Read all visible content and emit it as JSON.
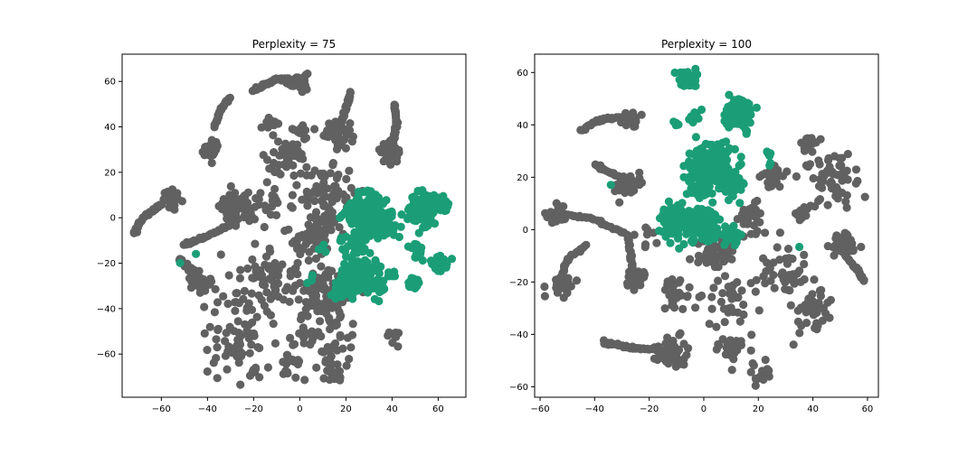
{
  "chart_data": [
    {
      "type": "scatter",
      "title": "Perplexity = 75",
      "xlabel": "",
      "ylabel": "",
      "xlim": [
        -77,
        72
      ],
      "ylim": [
        -79,
        72
      ],
      "xticks": [
        -60,
        -40,
        -20,
        0,
        20,
        40,
        60
      ],
      "yticks": [
        -60,
        -40,
        -20,
        0,
        20,
        40,
        60
      ],
      "xtick_labels": [
        "−60",
        "−40",
        "−20",
        "0",
        "20",
        "40",
        "60"
      ],
      "ytick_labels": [
        "−60",
        "−40",
        "−20",
        "0",
        "20",
        "40",
        "60"
      ],
      "grid": false,
      "series": [
        {
          "color": "#616161",
          "blobs": [
            {
              "cx": -1,
              "cy": 60,
              "r": 4,
              "n": 40
            },
            {
              "cx": 16,
              "cy": 38,
              "r": 5,
              "n": 60
            },
            {
              "cx": -39,
              "cy": 30,
              "r": 3.5,
              "n": 35
            },
            {
              "cx": 39,
              "cy": 29,
              "r": 4,
              "n": 35
            },
            {
              "cx": -55,
              "cy": 8,
              "r": 3.5,
              "n": 35
            },
            {
              "cx": -28,
              "cy": 4,
              "r": 6,
              "n": 80
            },
            {
              "cx": -44,
              "cy": -27,
              "r": 4.5,
              "n": 45
            },
            {
              "cx": 12,
              "cy": 12,
              "r": 10,
              "n": 55
            },
            {
              "cx": -5,
              "cy": 25,
              "r": 10,
              "n": 45
            },
            {
              "cx": -15,
              "cy": 5,
              "r": 8,
              "n": 25
            },
            {
              "cx": 5,
              "cy": -8,
              "r": 10,
              "n": 55
            },
            {
              "cx": -15,
              "cy": -25,
              "r": 12,
              "n": 60
            },
            {
              "cx": 10,
              "cy": -32,
              "r": 12,
              "n": 100
            },
            {
              "cx": -25,
              "cy": -45,
              "r": 14,
              "n": 40
            },
            {
              "cx": 10,
              "cy": -55,
              "r": 15,
              "n": 60
            },
            {
              "cx": -30,
              "cy": -62,
              "r": 12,
              "n": 30
            },
            {
              "cx": 15,
              "cy": -68,
              "r": 4,
              "n": 14
            },
            {
              "cx": -5,
              "cy": -65,
              "r": 5,
              "n": 15
            },
            {
              "cx": 40,
              "cy": -52,
              "r": 4,
              "n": 8
            },
            {
              "cx": -20,
              "cy": -68,
              "r": 2,
              "n": 6
            },
            {
              "cx": 12,
              "cy": -2,
              "r": 5,
              "n": 20
            },
            {
              "cx": -12,
              "cy": 40,
              "r": 3,
              "n": 8
            },
            {
              "cx": 0,
              "cy": 38,
              "r": 3,
              "n": 10
            }
          ],
          "curves": [
            {
              "points": [
                [
                  -20,
                  56
                ],
                [
                  -10,
                  61
                ],
                [
                  -5,
                  61
                ]
              ],
              "n": 60
            },
            {
              "points": [
                [
                  -37,
                  40
                ],
                [
                  -34,
                  48
                ],
                [
                  -30,
                  53
                ]
              ],
              "n": 25
            },
            {
              "points": [
                [
                  -72,
                  -7
                ],
                [
                  -68,
                  0
                ],
                [
                  -60,
                  6
                ]
              ],
              "n": 30
            },
            {
              "points": [
                [
                  -52,
                  -18
                ],
                [
                  -50,
                  -21
                ],
                [
                  -44,
                  -25
                ]
              ],
              "n": 22
            },
            {
              "points": [
                [
                  -50,
                  -12
                ],
                [
                  -40,
                  -8
                ],
                [
                  -28,
                  -2
                ]
              ],
              "n": 35
            },
            {
              "points": [
                [
                  22,
                  55
                ],
                [
                  20,
                  48
                ],
                [
                  17,
                  40
                ]
              ],
              "n": 28
            },
            {
              "points": [
                [
                  41,
                  50
                ],
                [
                  42,
                  42
                ],
                [
                  40,
                  32
                ]
              ],
              "n": 28
            }
          ]
        },
        {
          "color": "#1b9e77",
          "blobs": [
            {
              "cx": 28,
              "cy": 2,
              "r": 8,
              "n": 170
            },
            {
              "cx": 37,
              "cy": -3,
              "r": 5,
              "n": 55
            },
            {
              "cx": 24,
              "cy": -11,
              "r": 5,
              "n": 40
            },
            {
              "cx": 53,
              "cy": 4,
              "r": 6,
              "n": 120
            },
            {
              "cx": 62,
              "cy": 6,
              "r": 3,
              "n": 20
            },
            {
              "cx": 25,
              "cy": -25,
              "r": 7,
              "n": 110
            },
            {
              "cx": 33,
              "cy": -30,
              "r": 4,
              "n": 40
            },
            {
              "cx": 20,
              "cy": -32,
              "r": 4,
              "n": 30
            },
            {
              "cx": 51,
              "cy": -14,
              "r": 3,
              "n": 25
            },
            {
              "cx": 61,
              "cy": -20,
              "r": 3.5,
              "n": 35
            },
            {
              "cx": 49,
              "cy": -29,
              "r": 2.5,
              "n": 18
            },
            {
              "cx": 40,
              "cy": -24,
              "r": 2,
              "n": 8
            },
            {
              "cx": -45,
              "cy": -16,
              "r": 0.5,
              "n": 1
            },
            {
              "cx": -52,
              "cy": -20,
              "r": 0.5,
              "n": 1
            },
            {
              "cx": 10,
              "cy": -15,
              "r": 2,
              "n": 3
            },
            {
              "cx": 5,
              "cy": -27,
              "r": 2,
              "n": 3
            }
          ],
          "curves": []
        }
      ]
    },
    {
      "type": "scatter",
      "title": "Perplexity = 100",
      "xlabel": "",
      "ylabel": "",
      "xlim": [
        -62,
        64
      ],
      "ylim": [
        -64,
        67
      ],
      "xticks": [
        -60,
        -40,
        -20,
        0,
        20,
        40,
        60
      ],
      "yticks": [
        -60,
        -40,
        -20,
        0,
        20,
        40,
        60
      ],
      "xtick_labels": [
        "−60",
        "−40",
        "−20",
        "0",
        "20",
        "40",
        "60"
      ],
      "ytick_labels": [
        "−60",
        "−40",
        "−20",
        "0",
        "20",
        "40",
        "60"
      ],
      "grid": false,
      "series": [
        {
          "color": "#616161",
          "blobs": [
            {
              "cx": -27,
              "cy": 42,
              "r": 3,
              "n": 25
            },
            {
              "cx": -27,
              "cy": 17,
              "r": 4,
              "n": 35
            },
            {
              "cx": -54,
              "cy": 6,
              "r": 3.5,
              "n": 30
            },
            {
              "cx": -52,
              "cy": -21,
              "r": 3.5,
              "n": 30
            },
            {
              "cx": -25,
              "cy": -19,
              "r": 3.5,
              "n": 30
            },
            {
              "cx": -12,
              "cy": -47,
              "r": 5,
              "n": 70
            },
            {
              "cx": 51,
              "cy": -6,
              "r": 4.5,
              "n": 45
            },
            {
              "cx": 25,
              "cy": 20,
              "r": 4,
              "n": 35
            },
            {
              "cx": 5,
              "cy": -8,
              "r": 6,
              "n": 70
            },
            {
              "cx": 17,
              "cy": 4,
              "r": 5,
              "n": 30
            },
            {
              "cx": 30,
              "cy": -15,
              "r": 8,
              "n": 40
            },
            {
              "cx": 45,
              "cy": 20,
              "r": 10,
              "n": 60
            },
            {
              "cx": 38,
              "cy": -30,
              "r": 8,
              "n": 45
            },
            {
              "cx": 10,
              "cy": -28,
              "r": 10,
              "n": 40
            },
            {
              "cx": -10,
              "cy": -25,
              "r": 6,
              "n": 25
            },
            {
              "cx": 10,
              "cy": -46,
              "r": 5,
              "n": 30
            },
            {
              "cx": 22,
              "cy": -55,
              "r": 4,
              "n": 20
            },
            {
              "cx": 38,
              "cy": 33,
              "r": 3,
              "n": 15
            },
            {
              "cx": 35,
              "cy": 7,
              "r": 3,
              "n": 15
            },
            {
              "cx": -20,
              "cy": -3,
              "r": 4,
              "n": 8
            }
          ],
          "curves": [
            {
              "points": [
                [
                  -45,
                  38
                ],
                [
                  -38,
                  42
                ],
                [
                  -30,
                  43
                ]
              ],
              "n": 25
            },
            {
              "points": [
                [
                  -40,
                  25
                ],
                [
                  -35,
                  22
                ],
                [
                  -29,
                  19
                ]
              ],
              "n": 20
            },
            {
              "points": [
                [
                  -51,
                  6
                ],
                [
                  -40,
                  4
                ],
                [
                  -28,
                  -2
                ],
                [
                  -26,
                  -16
                ]
              ],
              "n": 50
            },
            {
              "points": [
                [
                  -52,
                  -18
                ],
                [
                  -50,
                  -11
                ],
                [
                  -43,
                  -6
                ]
              ],
              "n": 20
            },
            {
              "points": [
                [
                  -37,
                  -43
                ],
                [
                  -28,
                  -45
                ],
                [
                  -17,
                  -46
                ]
              ],
              "n": 40
            },
            {
              "points": [
                [
                  52,
                  -10
                ],
                [
                  56,
                  -15
                ],
                [
                  59,
                  -20
                ]
              ],
              "n": 20
            }
          ]
        },
        {
          "color": "#1b9e77",
          "blobs": [
            {
              "cx": -6,
              "cy": 57,
              "r": 3.5,
              "n": 45
            },
            {
              "cx": -10,
              "cy": 41,
              "r": 1.5,
              "n": 5
            },
            {
              "cx": -3,
              "cy": 43,
              "r": 2,
              "n": 12
            },
            {
              "cx": 13,
              "cy": 44,
              "r": 5,
              "n": 130
            },
            {
              "cx": 3,
              "cy": 25,
              "r": 7,
              "n": 200
            },
            {
              "cx": 10,
              "cy": 17,
              "r": 4,
              "n": 60
            },
            {
              "cx": -10,
              "cy": 3,
              "r": 6,
              "n": 110
            },
            {
              "cx": 0,
              "cy": 2,
              "r": 6,
              "n": 80
            },
            {
              "cx": 10,
              "cy": -2,
              "r": 3,
              "n": 30
            },
            {
              "cx": -2,
              "cy": 15,
              "r": 4,
              "n": 40
            },
            {
              "cx": 24,
              "cy": 27,
              "r": 2,
              "n": 6
            },
            {
              "cx": 35,
              "cy": -7,
              "r": 0.5,
              "n": 1
            },
            {
              "cx": -34,
              "cy": 17,
              "r": 0.5,
              "n": 1
            }
          ],
          "curves": []
        }
      ]
    }
  ]
}
